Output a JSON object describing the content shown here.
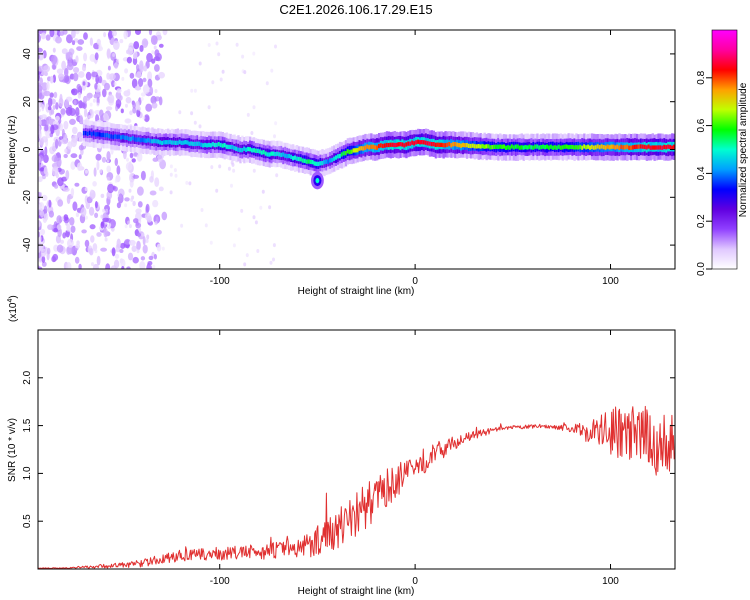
{
  "figure": {
    "title": "C2E1.2026.106.17.29.E15"
  },
  "chart_data": [
    {
      "type": "heatmap",
      "xlabel": "Height of straight line (km)",
      "ylabel": "Frequency (Hz)",
      "xlim": [
        -193,
        133
      ],
      "ylim": [
        -50,
        50
      ],
      "x_ticks": [
        -100,
        0,
        100
      ],
      "x_tick_labels": [
        "-100",
        "0",
        "100"
      ],
      "y_ticks": [
        -40,
        -20,
        0,
        20,
        40
      ],
      "y_tick_labels": [
        "-40",
        "-20",
        "0",
        "20",
        "40"
      ],
      "colorbar": {
        "label": "Normalized spectral amplitude",
        "range": [
          0,
          1
        ],
        "ticks": [
          0,
          0.2,
          0.4,
          0.6,
          0.8
        ],
        "tick_labels": [
          "0.0",
          "0.2",
          "0.4",
          "0.6",
          "0.8"
        ],
        "colors": [
          "#ffffff",
          "#e0c8ff",
          "#9040ff",
          "#6000e0",
          "#0000ff",
          "#00a0ff",
          "#00ffd0",
          "#00ff00",
          "#c0ff00",
          "#ffa000",
          "#ff0000",
          "#ff00a0",
          "#ff00ff"
        ]
      },
      "ridge": {
        "heights": [
          -170,
          -160,
          -150,
          -140,
          -130,
          -120,
          -110,
          -100,
          -95,
          -90,
          -85,
          -80,
          -75,
          -70,
          -65,
          -60,
          -55,
          -50,
          -45,
          -40,
          -35,
          -30,
          -25,
          -20,
          -15,
          -10,
          -5,
          0,
          5,
          10,
          20,
          40,
          60,
          80,
          100,
          120,
          133
        ],
        "frequencies": [
          7,
          6,
          5,
          4,
          3,
          3,
          2,
          2,
          1,
          0,
          0,
          -1,
          -2,
          -2,
          -3,
          -4,
          -5,
          -6,
          -5,
          -3,
          -1,
          0,
          1,
          1,
          2,
          2,
          2,
          3,
          3,
          2,
          2,
          1,
          1,
          1,
          1,
          1,
          1
        ],
        "amplitudes": [
          0.35,
          0.35,
          0.4,
          0.4,
          0.45,
          0.45,
          0.45,
          0.5,
          0.45,
          0.45,
          0.5,
          0.5,
          0.5,
          0.45,
          0.45,
          0.5,
          0.55,
          0.5,
          0.4,
          0.5,
          0.6,
          0.7,
          0.75,
          0.8,
          0.85,
          0.85,
          0.85,
          0.85,
          0.85,
          0.85,
          0.75,
          0.6,
          0.55,
          0.6,
          0.75,
          0.85,
          0.85
        ]
      },
      "secondary_feature": {
        "height": -50,
        "frequency": -13,
        "amplitude": 0.5
      }
    },
    {
      "type": "line",
      "xlabel": "Height of straight line (km)",
      "ylabel": "SNR (10 * v/v)",
      "y_multiplier_label": "(x10",
      "y_multiplier_exponent": "4",
      "y_multiplier_close": ")",
      "xlim": [
        -193,
        133
      ],
      "ylim": [
        0,
        2.5
      ],
      "x_ticks": [
        -100,
        0,
        100
      ],
      "x_tick_labels": [
        "-100",
        "0",
        "100"
      ],
      "y_ticks": [
        0.5,
        1.0,
        1.5,
        2.0
      ],
      "y_tick_labels": [
        "0.5",
        "1.0",
        "1.5",
        "2.0"
      ],
      "color": "#e03030",
      "series": [
        {
          "x": [
            -193,
            -180,
            -160,
            -150,
            -140,
            -130,
            -120,
            -110,
            -100,
            -90,
            -80,
            -70,
            -60,
            -55,
            -50,
            -45,
            -40,
            -35,
            -30,
            -25,
            -20,
            -15,
            -10,
            -5,
            0,
            5,
            10,
            20,
            30,
            40,
            50,
            60,
            70,
            80,
            85,
            90,
            95,
            100,
            105,
            110,
            115,
            120,
            125,
            130,
            133
          ],
          "y": [
            0.01,
            0.01,
            0.03,
            0.04,
            0.06,
            0.1,
            0.14,
            0.15,
            0.16,
            0.17,
            0.18,
            0.2,
            0.22,
            0.26,
            0.3,
            0.36,
            0.42,
            0.5,
            0.58,
            0.66,
            0.74,
            0.84,
            0.92,
            0.98,
            1.05,
            1.12,
            1.22,
            1.32,
            1.4,
            1.45,
            1.48,
            1.49,
            1.49,
            1.47,
            1.45,
            1.44,
            1.43,
            1.45,
            1.42,
            1.4,
            1.38,
            1.37,
            1.3,
            1.25,
            1.2
          ],
          "noise": [
            0.005,
            0.005,
            0.02,
            0.03,
            0.04,
            0.05,
            0.06,
            0.06,
            0.07,
            0.07,
            0.08,
            0.09,
            0.1,
            0.14,
            0.16,
            0.18,
            0.22,
            0.26,
            0.26,
            0.24,
            0.22,
            0.2,
            0.18,
            0.16,
            0.14,
            0.12,
            0.1,
            0.07,
            0.04,
            0.03,
            0.02,
            0.02,
            0.02,
            0.04,
            0.08,
            0.15,
            0.2,
            0.25,
            0.28,
            0.3,
            0.32,
            0.34,
            0.36,
            0.38,
            0.4
          ]
        }
      ]
    }
  ]
}
